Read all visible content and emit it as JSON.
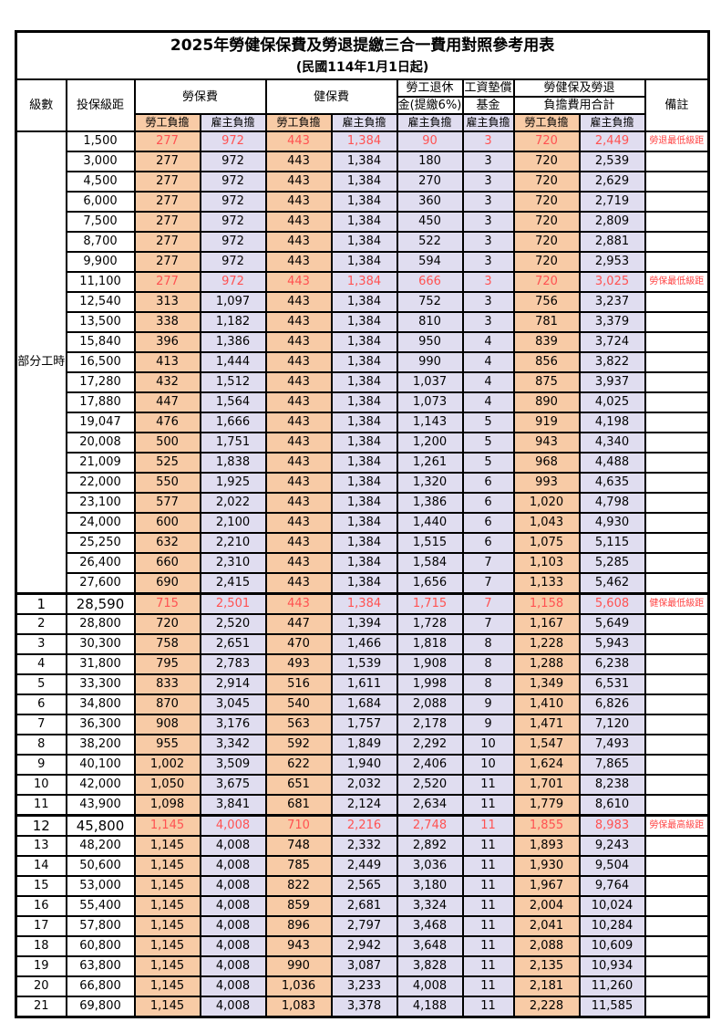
{
  "title": "2025年勞健保保費及勞退提繳三合一費用對照參考用表",
  "subtitle": "(民國114年1月1日起)",
  "colors": {
    "labor_column_bg": "#F8CBA6",
    "employer_column_bg": "#E0DDF0",
    "highlight_value_text": "#FF5252",
    "note_text": "#FF4545",
    "border": "#000000"
  },
  "header": {
    "level": "級數",
    "bracket": "投保級距",
    "labor_insurance": "勞保費",
    "health_insurance": "健保費",
    "pension_line1": "勞工退休",
    "pension_line2": "金(提繳6%)",
    "wage_fund_line1": "工資墊償",
    "wage_fund_line2": "基金",
    "total_line1": "勞健保及勞退",
    "total_line2": "負擔費用合計",
    "note": "備註",
    "sub_labels": [
      "勞工負擔",
      "雇主負擔",
      "勞工負擔",
      "雇主負擔",
      "雇主負擔",
      "雇主負擔",
      "勞工負擔",
      "雇主負擔"
    ]
  },
  "part_time": {
    "label": "部分工時",
    "row_count": 23
  },
  "rows": [
    {
      "level": "",
      "bracket": "1,500",
      "values": [
        "277",
        "972",
        "443",
        "1,384",
        "90",
        "3",
        "720",
        "2,449"
      ],
      "note": "勞退最低級距",
      "red": true,
      "big": false
    },
    {
      "level": "",
      "bracket": "3,000",
      "values": [
        "277",
        "972",
        "443",
        "1,384",
        "180",
        "3",
        "720",
        "2,539"
      ],
      "note": "",
      "red": false,
      "big": false
    },
    {
      "level": "",
      "bracket": "4,500",
      "values": [
        "277",
        "972",
        "443",
        "1,384",
        "270",
        "3",
        "720",
        "2,629"
      ],
      "note": "",
      "red": false,
      "big": false
    },
    {
      "level": "",
      "bracket": "6,000",
      "values": [
        "277",
        "972",
        "443",
        "1,384",
        "360",
        "3",
        "720",
        "2,719"
      ],
      "note": "",
      "red": false,
      "big": false
    },
    {
      "level": "",
      "bracket": "7,500",
      "values": [
        "277",
        "972",
        "443",
        "1,384",
        "450",
        "3",
        "720",
        "2,809"
      ],
      "note": "",
      "red": false,
      "big": false
    },
    {
      "level": "",
      "bracket": "8,700",
      "values": [
        "277",
        "972",
        "443",
        "1,384",
        "522",
        "3",
        "720",
        "2,881"
      ],
      "note": "",
      "red": false,
      "big": false
    },
    {
      "level": "",
      "bracket": "9,900",
      "values": [
        "277",
        "972",
        "443",
        "1,384",
        "594",
        "3",
        "720",
        "2,953"
      ],
      "note": "",
      "red": false,
      "big": false
    },
    {
      "level": "",
      "bracket": "11,100",
      "values": [
        "277",
        "972",
        "443",
        "1,384",
        "666",
        "3",
        "720",
        "3,025"
      ],
      "note": "勞保最低級距",
      "red": true,
      "big": false
    },
    {
      "level": "",
      "bracket": "12,540",
      "values": [
        "313",
        "1,097",
        "443",
        "1,384",
        "752",
        "3",
        "756",
        "3,237"
      ],
      "note": "",
      "red": false,
      "big": false
    },
    {
      "level": "",
      "bracket": "13,500",
      "values": [
        "338",
        "1,182",
        "443",
        "1,384",
        "810",
        "3",
        "781",
        "3,379"
      ],
      "note": "",
      "red": false,
      "big": false
    },
    {
      "level": "",
      "bracket": "15,840",
      "values": [
        "396",
        "1,386",
        "443",
        "1,384",
        "950",
        "4",
        "839",
        "3,724"
      ],
      "note": "",
      "red": false,
      "big": false
    },
    {
      "level": "",
      "bracket": "16,500",
      "values": [
        "413",
        "1,444",
        "443",
        "1,384",
        "990",
        "4",
        "856",
        "3,822"
      ],
      "note": "",
      "red": false,
      "big": false
    },
    {
      "level": "",
      "bracket": "17,280",
      "values": [
        "432",
        "1,512",
        "443",
        "1,384",
        "1,037",
        "4",
        "875",
        "3,937"
      ],
      "note": "",
      "red": false,
      "big": false
    },
    {
      "level": "",
      "bracket": "17,880",
      "values": [
        "447",
        "1,564",
        "443",
        "1,384",
        "1,073",
        "4",
        "890",
        "4,025"
      ],
      "note": "",
      "red": false,
      "big": false
    },
    {
      "level": "",
      "bracket": "19,047",
      "values": [
        "476",
        "1,666",
        "443",
        "1,384",
        "1,143",
        "5",
        "919",
        "4,198"
      ],
      "note": "",
      "red": false,
      "big": false
    },
    {
      "level": "",
      "bracket": "20,008",
      "values": [
        "500",
        "1,751",
        "443",
        "1,384",
        "1,200",
        "5",
        "943",
        "4,340"
      ],
      "note": "",
      "red": false,
      "big": false
    },
    {
      "level": "",
      "bracket": "21,009",
      "values": [
        "525",
        "1,838",
        "443",
        "1,384",
        "1,261",
        "5",
        "968",
        "4,488"
      ],
      "note": "",
      "red": false,
      "big": false
    },
    {
      "level": "",
      "bracket": "22,000",
      "values": [
        "550",
        "1,925",
        "443",
        "1,384",
        "1,320",
        "6",
        "993",
        "4,635"
      ],
      "note": "",
      "red": false,
      "big": false
    },
    {
      "level": "",
      "bracket": "23,100",
      "values": [
        "577",
        "2,022",
        "443",
        "1,384",
        "1,386",
        "6",
        "1,020",
        "4,798"
      ],
      "note": "",
      "red": false,
      "big": false
    },
    {
      "level": "",
      "bracket": "24,000",
      "values": [
        "600",
        "2,100",
        "443",
        "1,384",
        "1,440",
        "6",
        "1,043",
        "4,930"
      ],
      "note": "",
      "red": false,
      "big": false
    },
    {
      "level": "",
      "bracket": "25,250",
      "values": [
        "632",
        "2,210",
        "443",
        "1,384",
        "1,515",
        "6",
        "1,075",
        "5,115"
      ],
      "note": "",
      "red": false,
      "big": false
    },
    {
      "level": "",
      "bracket": "26,400",
      "values": [
        "660",
        "2,310",
        "443",
        "1,384",
        "1,584",
        "7",
        "1,103",
        "5,285"
      ],
      "note": "",
      "red": false,
      "big": false
    },
    {
      "level": "",
      "bracket": "27,600",
      "values": [
        "690",
        "2,415",
        "443",
        "1,384",
        "1,656",
        "7",
        "1,133",
        "5,462"
      ],
      "note": "",
      "red": false,
      "big": false
    },
    {
      "level": "1",
      "bracket": "28,590",
      "values": [
        "715",
        "2,501",
        "443",
        "1,384",
        "1,715",
        "7",
        "1,158",
        "5,608"
      ],
      "note": "健保最低級距",
      "red": true,
      "big": true
    },
    {
      "level": "2",
      "bracket": "28,800",
      "values": [
        "720",
        "2,520",
        "447",
        "1,394",
        "1,728",
        "7",
        "1,167",
        "5,649"
      ],
      "note": "",
      "red": false,
      "big": false
    },
    {
      "level": "3",
      "bracket": "30,300",
      "values": [
        "758",
        "2,651",
        "470",
        "1,466",
        "1,818",
        "8",
        "1,228",
        "5,943"
      ],
      "note": "",
      "red": false,
      "big": false
    },
    {
      "level": "4",
      "bracket": "31,800",
      "values": [
        "795",
        "2,783",
        "493",
        "1,539",
        "1,908",
        "8",
        "1,288",
        "6,238"
      ],
      "note": "",
      "red": false,
      "big": false
    },
    {
      "level": "5",
      "bracket": "33,300",
      "values": [
        "833",
        "2,914",
        "516",
        "1,611",
        "1,998",
        "8",
        "1,349",
        "6,531"
      ],
      "note": "",
      "red": false,
      "big": false
    },
    {
      "level": "6",
      "bracket": "34,800",
      "values": [
        "870",
        "3,045",
        "540",
        "1,684",
        "2,088",
        "9",
        "1,410",
        "6,826"
      ],
      "note": "",
      "red": false,
      "big": false
    },
    {
      "level": "7",
      "bracket": "36,300",
      "values": [
        "908",
        "3,176",
        "563",
        "1,757",
        "2,178",
        "9",
        "1,471",
        "7,120"
      ],
      "note": "",
      "red": false,
      "big": false
    },
    {
      "level": "8",
      "bracket": "38,200",
      "values": [
        "955",
        "3,342",
        "592",
        "1,849",
        "2,292",
        "10",
        "1,547",
        "7,493"
      ],
      "note": "",
      "red": false,
      "big": false
    },
    {
      "level": "9",
      "bracket": "40,100",
      "values": [
        "1,002",
        "3,509",
        "622",
        "1,940",
        "2,406",
        "10",
        "1,624",
        "7,865"
      ],
      "note": "",
      "red": false,
      "big": false
    },
    {
      "level": "10",
      "bracket": "42,000",
      "values": [
        "1,050",
        "3,675",
        "651",
        "2,032",
        "2,520",
        "11",
        "1,701",
        "8,238"
      ],
      "note": "",
      "red": false,
      "big": false
    },
    {
      "level": "11",
      "bracket": "43,900",
      "values": [
        "1,098",
        "3,841",
        "681",
        "2,124",
        "2,634",
        "11",
        "1,779",
        "8,610"
      ],
      "note": "",
      "red": false,
      "big": false
    },
    {
      "level": "12",
      "bracket": "45,800",
      "values": [
        "1,145",
        "4,008",
        "710",
        "2,216",
        "2,748",
        "11",
        "1,855",
        "8,983"
      ],
      "note": "勞保最高級距",
      "red": true,
      "big": true
    },
    {
      "level": "13",
      "bracket": "48,200",
      "values": [
        "1,145",
        "4,008",
        "748",
        "2,332",
        "2,892",
        "11",
        "1,893",
        "9,243"
      ],
      "note": "",
      "red": false,
      "big": false
    },
    {
      "level": "14",
      "bracket": "50,600",
      "values": [
        "1,145",
        "4,008",
        "785",
        "2,449",
        "3,036",
        "11",
        "1,930",
        "9,504"
      ],
      "note": "",
      "red": false,
      "big": false
    },
    {
      "level": "15",
      "bracket": "53,000",
      "values": [
        "1,145",
        "4,008",
        "822",
        "2,565",
        "3,180",
        "11",
        "1,967",
        "9,764"
      ],
      "note": "",
      "red": false,
      "big": false
    },
    {
      "level": "16",
      "bracket": "55,400",
      "values": [
        "1,145",
        "4,008",
        "859",
        "2,681",
        "3,324",
        "11",
        "2,004",
        "10,024"
      ],
      "note": "",
      "red": false,
      "big": false
    },
    {
      "level": "17",
      "bracket": "57,800",
      "values": [
        "1,145",
        "4,008",
        "896",
        "2,797",
        "3,468",
        "11",
        "2,041",
        "10,284"
      ],
      "note": "",
      "red": false,
      "big": false
    },
    {
      "level": "18",
      "bracket": "60,800",
      "values": [
        "1,145",
        "4,008",
        "943",
        "2,942",
        "3,648",
        "11",
        "2,088",
        "10,609"
      ],
      "note": "",
      "red": false,
      "big": false
    },
    {
      "level": "19",
      "bracket": "63,800",
      "values": [
        "1,145",
        "4,008",
        "990",
        "3,087",
        "3,828",
        "11",
        "2,135",
        "10,934"
      ],
      "note": "",
      "red": false,
      "big": false
    },
    {
      "level": "20",
      "bracket": "66,800",
      "values": [
        "1,145",
        "4,008",
        "1,036",
        "3,233",
        "4,008",
        "11",
        "2,181",
        "11,260"
      ],
      "note": "",
      "red": false,
      "big": false
    },
    {
      "level": "21",
      "bracket": "69,800",
      "values": [
        "1,145",
        "4,008",
        "1,083",
        "3,378",
        "4,188",
        "11",
        "2,228",
        "11,585"
      ],
      "note": "",
      "red": false,
      "big": false
    }
  ]
}
